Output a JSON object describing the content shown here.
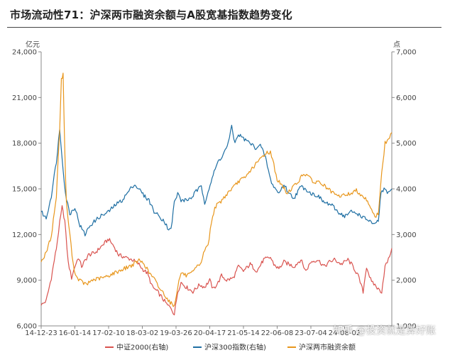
{
  "title": "市场流动性71：沪深两市融资余额与A股宽基指数趋势变化",
  "watermark": "知乎 @投资就是算好账",
  "chart_data": {
    "type": "line",
    "left_axis": {
      "unit": "亿元",
      "ylim": [
        6000,
        24000
      ],
      "ticks": [
        "6,000",
        "9,000",
        "12,000",
        "15,000",
        "18,000",
        "21,000",
        "24,000"
      ]
    },
    "right_axis": {
      "unit": "点",
      "ylim": [
        1000,
        7000
      ],
      "ticks": [
        "1,000",
        "2,000",
        "3,000",
        "4,000",
        "5,000",
        "6,000",
        "7,000"
      ]
    },
    "x_ticks": [
      "14-12-23",
      "16-01-14",
      "17-02-10",
      "18-03-02",
      "19-03-26",
      "20-04-17",
      "21-05-14",
      "22-06-08",
      "23-07-04",
      "24-08-02"
    ],
    "x_range": [
      0,
      10.4
    ],
    "grid": false,
    "legend_position": "bottom",
    "series": [
      {
        "name": "中证2000(右轴)",
        "axis": "right",
        "color": "#d9534f",
        "points": [
          [
            0,
            1450
          ],
          [
            0.15,
            1550
          ],
          [
            0.3,
            2050
          ],
          [
            0.45,
            2700
          ],
          [
            0.55,
            3250
          ],
          [
            0.62,
            3600
          ],
          [
            0.7,
            3300
          ],
          [
            0.8,
            2400
          ],
          [
            0.9,
            2050
          ],
          [
            1,
            2300
          ],
          [
            1.1,
            2500
          ],
          [
            1.2,
            2300
          ],
          [
            1.4,
            2550
          ],
          [
            1.6,
            2600
          ],
          [
            1.8,
            2750
          ],
          [
            2,
            2900
          ],
          [
            2.15,
            2750
          ],
          [
            2.3,
            2550
          ],
          [
            2.5,
            2500
          ],
          [
            2.7,
            2450
          ],
          [
            2.9,
            2350
          ],
          [
            3.0,
            2250
          ],
          [
            3.15,
            2150
          ],
          [
            3.3,
            1850
          ],
          [
            3.45,
            1750
          ],
          [
            3.6,
            1600
          ],
          [
            3.75,
            1450
          ],
          [
            3.85,
            1400
          ],
          [
            3.95,
            1250
          ],
          [
            4.05,
            1750
          ],
          [
            4.15,
            1950
          ],
          [
            4.3,
            1850
          ],
          [
            4.5,
            1750
          ],
          [
            4.7,
            1900
          ],
          [
            4.85,
            1850
          ],
          [
            5.0,
            2000
          ],
          [
            5.1,
            1800
          ],
          [
            5.25,
            1950
          ],
          [
            5.35,
            2100
          ],
          [
            5.5,
            2000
          ],
          [
            5.7,
            2050
          ],
          [
            5.85,
            2300
          ],
          [
            6.0,
            2200
          ],
          [
            6.2,
            2350
          ],
          [
            6.4,
            2200
          ],
          [
            6.6,
            2450
          ],
          [
            6.8,
            2500
          ],
          [
            6.9,
            2350
          ],
          [
            7.05,
            2250
          ],
          [
            7.2,
            2400
          ],
          [
            7.35,
            2350
          ],
          [
            7.5,
            2300
          ],
          [
            7.7,
            2450
          ],
          [
            7.85,
            2200
          ],
          [
            8.0,
            2400
          ],
          [
            8.2,
            2450
          ],
          [
            8.4,
            2300
          ],
          [
            8.55,
            2400
          ],
          [
            8.7,
            2450
          ],
          [
            8.9,
            2350
          ],
          [
            9.1,
            2450
          ],
          [
            9.25,
            2300
          ],
          [
            9.4,
            2100
          ],
          [
            9.55,
            1750
          ],
          [
            9.65,
            2300
          ],
          [
            9.8,
            1950
          ],
          [
            9.9,
            1900
          ],
          [
            10.0,
            1800
          ],
          [
            10.1,
            1750
          ],
          [
            10.2,
            2300
          ],
          [
            10.3,
            2450
          ],
          [
            10.4,
            2700
          ]
        ]
      },
      {
        "name": "沪深300指数(右轴)",
        "axis": "right",
        "color": "#1f6fa3",
        "points": [
          [
            0,
            3500
          ],
          [
            0.15,
            3350
          ],
          [
            0.3,
            3850
          ],
          [
            0.45,
            4600
          ],
          [
            0.55,
            5300
          ],
          [
            0.62,
            4700
          ],
          [
            0.72,
            3900
          ],
          [
            0.85,
            3450
          ],
          [
            1.0,
            3600
          ],
          [
            1.15,
            3200
          ],
          [
            1.3,
            3000
          ],
          [
            1.45,
            3200
          ],
          [
            1.6,
            3300
          ],
          [
            1.75,
            3400
          ],
          [
            1.9,
            3450
          ],
          [
            2.0,
            3500
          ],
          [
            2.2,
            3650
          ],
          [
            2.4,
            3750
          ],
          [
            2.6,
            3950
          ],
          [
            2.75,
            4100
          ],
          [
            2.9,
            4000
          ],
          [
            3.05,
            3850
          ],
          [
            3.2,
            3750
          ],
          [
            3.35,
            3500
          ],
          [
            3.5,
            3400
          ],
          [
            3.65,
            3300
          ],
          [
            3.75,
            3150
          ],
          [
            3.85,
            3100
          ],
          [
            3.95,
            3700
          ],
          [
            4.05,
            3900
          ],
          [
            4.15,
            3750
          ],
          [
            4.3,
            3750
          ],
          [
            4.45,
            3800
          ],
          [
            4.6,
            3950
          ],
          [
            4.75,
            4050
          ],
          [
            4.85,
            3700
          ],
          [
            4.95,
            3950
          ],
          [
            5.1,
            4300
          ],
          [
            5.25,
            4600
          ],
          [
            5.4,
            4750
          ],
          [
            5.55,
            5000
          ],
          [
            5.65,
            5350
          ],
          [
            5.75,
            5000
          ],
          [
            5.85,
            5200
          ],
          [
            6.0,
            5100
          ],
          [
            6.2,
            5000
          ],
          [
            6.35,
            4900
          ],
          [
            6.5,
            4950
          ],
          [
            6.65,
            4700
          ],
          [
            6.8,
            4200
          ],
          [
            6.9,
            4050
          ],
          [
            7.05,
            3900
          ],
          [
            7.2,
            4100
          ],
          [
            7.35,
            3900
          ],
          [
            7.5,
            3800
          ],
          [
            7.7,
            4050
          ],
          [
            7.85,
            4000
          ],
          [
            8.0,
            3900
          ],
          [
            8.2,
            3850
          ],
          [
            8.4,
            3700
          ],
          [
            8.6,
            3650
          ],
          [
            8.8,
            3500
          ],
          [
            9.0,
            3400
          ],
          [
            9.2,
            3500
          ],
          [
            9.4,
            3450
          ],
          [
            9.6,
            3350
          ],
          [
            9.75,
            3300
          ],
          [
            9.88,
            3200
          ],
          [
            10.0,
            3300
          ],
          [
            10.08,
            3900
          ],
          [
            10.2,
            4000
          ],
          [
            10.3,
            3900
          ],
          [
            10.4,
            4000
          ]
        ]
      },
      {
        "name": "沪深两市融资余额",
        "axis": "left",
        "color": "#e8961c",
        "points": [
          [
            0,
            10200
          ],
          [
            0.15,
            10800
          ],
          [
            0.3,
            11900
          ],
          [
            0.45,
            14500
          ],
          [
            0.55,
            19000
          ],
          [
            0.6,
            22200
          ],
          [
            0.65,
            22500
          ],
          [
            0.7,
            17500
          ],
          [
            0.75,
            14000
          ],
          [
            0.85,
            12000
          ],
          [
            0.95,
            10000
          ],
          [
            1.05,
            9200
          ],
          [
            1.2,
            8900
          ],
          [
            1.35,
            8700
          ],
          [
            1.5,
            9000
          ],
          [
            1.7,
            9100
          ],
          [
            1.9,
            9200
          ],
          [
            2.1,
            9400
          ],
          [
            2.3,
            9600
          ],
          [
            2.5,
            9800
          ],
          [
            2.7,
            10000
          ],
          [
            2.9,
            10300
          ],
          [
            3.05,
            10100
          ],
          [
            3.2,
            9500
          ],
          [
            3.35,
            9100
          ],
          [
            3.5,
            8500
          ],
          [
            3.65,
            8100
          ],
          [
            3.8,
            7600
          ],
          [
            3.95,
            7300
          ],
          [
            4.05,
            8600
          ],
          [
            4.15,
            9500
          ],
          [
            4.3,
            9300
          ],
          [
            4.45,
            9400
          ],
          [
            4.6,
            9800
          ],
          [
            4.75,
            10200
          ],
          [
            4.85,
            11000
          ],
          [
            4.95,
            11300
          ],
          [
            5.05,
            12800
          ],
          [
            5.15,
            13800
          ],
          [
            5.3,
            14100
          ],
          [
            5.45,
            14500
          ],
          [
            5.6,
            14900
          ],
          [
            5.75,
            15200
          ],
          [
            5.9,
            15600
          ],
          [
            6.05,
            15700
          ],
          [
            6.2,
            16200
          ],
          [
            6.4,
            16700
          ],
          [
            6.55,
            17100
          ],
          [
            6.7,
            17400
          ],
          [
            6.8,
            17400
          ],
          [
            6.9,
            16600
          ],
          [
            7.0,
            15600
          ],
          [
            7.15,
            15200
          ],
          [
            7.3,
            14700
          ],
          [
            7.45,
            15100
          ],
          [
            7.6,
            15400
          ],
          [
            7.75,
            15900
          ],
          [
            7.9,
            16000
          ],
          [
            8.05,
            15400
          ],
          [
            8.2,
            15500
          ],
          [
            8.4,
            15200
          ],
          [
            8.6,
            14800
          ],
          [
            8.8,
            14500
          ],
          [
            9.0,
            14600
          ],
          [
            9.2,
            14700
          ],
          [
            9.35,
            14900
          ],
          [
            9.5,
            14600
          ],
          [
            9.65,
            14300
          ],
          [
            9.8,
            13700
          ],
          [
            9.9,
            13100
          ],
          [
            10.0,
            13400
          ],
          [
            10.1,
            16000
          ],
          [
            10.2,
            18000
          ],
          [
            10.3,
            18200
          ],
          [
            10.4,
            18700
          ]
        ]
      }
    ]
  }
}
